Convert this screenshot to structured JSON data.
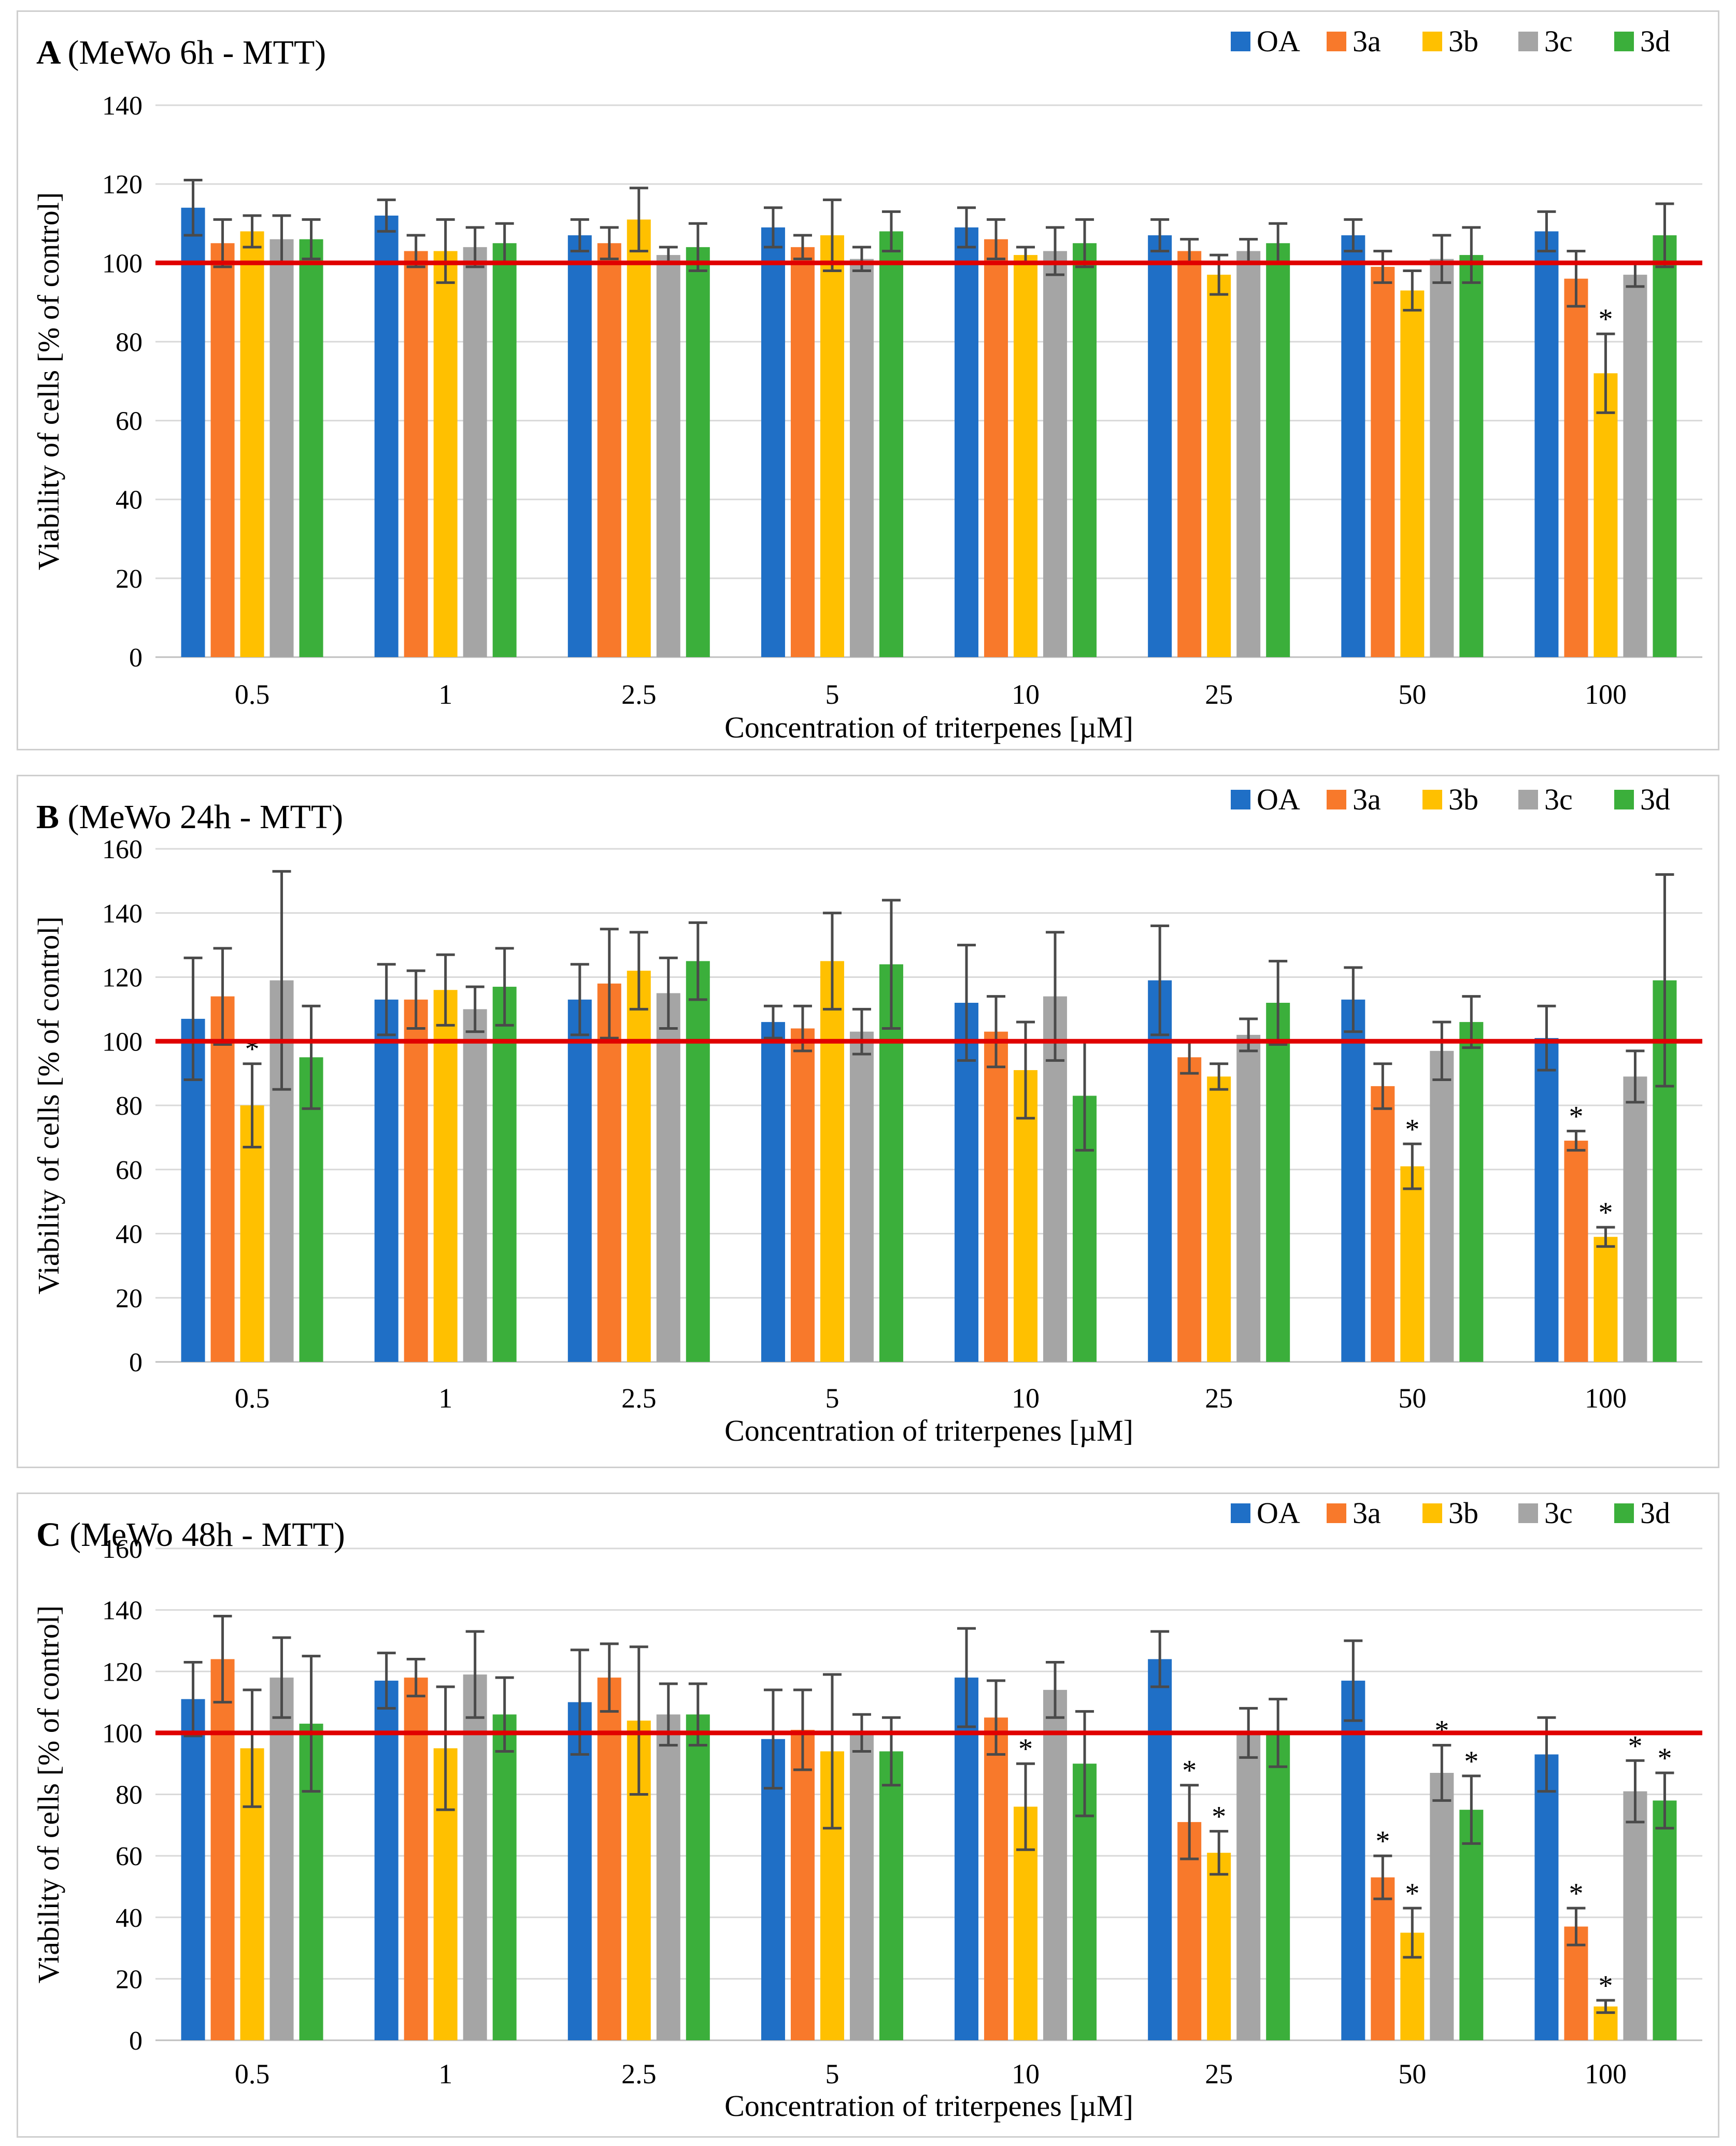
{
  "colors": {
    "OA": "#1F6FC6",
    "3a": "#F8792B",
    "3b": "#FFC000",
    "3c": "#A5A5A5",
    "3d": "#3BAF3B",
    "reference_line": "#E00000",
    "gridline": "#d9d9d9",
    "error_bar": "#4a4a4a"
  },
  "chart_data": [
    {
      "type": "bar",
      "panel_letter": "A",
      "title": "(MeWo 6h - MTT)",
      "xlabel": "Concentration of triterpenes [µM]",
      "ylabel": "Viability of cells [% of control]",
      "ylim": [
        0,
        140
      ],
      "yticks": [
        0,
        20,
        40,
        60,
        80,
        100,
        120,
        140
      ],
      "reference_value": 100,
      "legend_position": "top-right",
      "categories": [
        "0.5",
        "1",
        "2.5",
        "5",
        "10",
        "25",
        "50",
        "100"
      ],
      "series": [
        {
          "name": "OA",
          "values": [
            114,
            112,
            107,
            109,
            109,
            107,
            107,
            108
          ],
          "errors": [
            7,
            4,
            4,
            5,
            5,
            4,
            4,
            5
          ],
          "sig": [
            false,
            false,
            false,
            false,
            false,
            false,
            false,
            false
          ]
        },
        {
          "name": "3a",
          "values": [
            105,
            103,
            105,
            104,
            106,
            103,
            99,
            96
          ],
          "errors": [
            6,
            4,
            4,
            3,
            5,
            3,
            4,
            7
          ],
          "sig": [
            false,
            false,
            false,
            false,
            false,
            false,
            false,
            false
          ]
        },
        {
          "name": "3b",
          "values": [
            108,
            103,
            111,
            107,
            102,
            97,
            93,
            72
          ],
          "errors": [
            4,
            8,
            8,
            9,
            2,
            5,
            5,
            10
          ],
          "sig": [
            false,
            false,
            false,
            false,
            false,
            false,
            false,
            true
          ]
        },
        {
          "name": "3c",
          "values": [
            106,
            104,
            102,
            101,
            103,
            103,
            101,
            97
          ],
          "errors": [
            6,
            5,
            2,
            3,
            6,
            3,
            6,
            3
          ],
          "sig": [
            false,
            false,
            false,
            false,
            false,
            false,
            false,
            false
          ]
        },
        {
          "name": "3d",
          "values": [
            106,
            105,
            104,
            108,
            105,
            105,
            102,
            107
          ],
          "errors": [
            5,
            5,
            6,
            5,
            6,
            5,
            7,
            8
          ],
          "sig": [
            false,
            false,
            false,
            false,
            false,
            false,
            false,
            false
          ]
        }
      ]
    },
    {
      "type": "bar",
      "panel_letter": "B",
      "title": "(MeWo 24h - MTT)",
      "xlabel": "Concentration of triterpenes [µM]",
      "ylabel": "Viability of cells [% of control]",
      "ylim": [
        0,
        160
      ],
      "yticks": [
        0,
        20,
        40,
        60,
        80,
        100,
        120,
        140,
        160
      ],
      "reference_value": 100,
      "legend_position": "top-right",
      "categories": [
        "0.5",
        "1",
        "2.5",
        "5",
        "10",
        "25",
        "50",
        "100"
      ],
      "series": [
        {
          "name": "OA",
          "values": [
            107,
            113,
            113,
            106,
            112,
            119,
            113,
            101
          ],
          "errors": [
            19,
            11,
            11,
            5,
            18,
            17,
            10,
            10
          ],
          "sig": [
            false,
            false,
            false,
            false,
            false,
            false,
            false,
            false
          ]
        },
        {
          "name": "3a",
          "values": [
            114,
            113,
            118,
            104,
            103,
            95,
            86,
            69
          ],
          "errors": [
            15,
            9,
            17,
            7,
            11,
            5,
            7,
            3
          ],
          "sig": [
            false,
            false,
            false,
            false,
            false,
            false,
            false,
            true
          ]
        },
        {
          "name": "3b",
          "values": [
            80,
            116,
            122,
            125,
            91,
            89,
            61,
            39
          ],
          "errors": [
            13,
            11,
            12,
            15,
            15,
            4,
            7,
            3
          ],
          "sig": [
            true,
            false,
            false,
            false,
            false,
            false,
            true,
            true
          ]
        },
        {
          "name": "3c",
          "values": [
            119,
            110,
            115,
            103,
            114,
            102,
            97,
            89
          ],
          "errors": [
            34,
            7,
            11,
            7,
            20,
            5,
            9,
            8
          ],
          "sig": [
            false,
            false,
            false,
            false,
            false,
            false,
            false,
            false
          ]
        },
        {
          "name": "3d",
          "values": [
            95,
            117,
            125,
            124,
            83,
            112,
            106,
            119
          ],
          "errors": [
            16,
            12,
            12,
            20,
            17,
            13,
            8,
            33
          ],
          "sig": [
            false,
            false,
            false,
            false,
            false,
            false,
            false,
            false
          ]
        }
      ]
    },
    {
      "type": "bar",
      "panel_letter": "C",
      "title": "(MeWo 48h - MTT)",
      "xlabel": "Concentration of triterpenes [µM]",
      "ylabel": "Viability of cells [% of control]",
      "ylim": [
        0,
        160
      ],
      "yticks": [
        0,
        20,
        40,
        60,
        80,
        100,
        120,
        140,
        160
      ],
      "reference_value": 100,
      "legend_position": "top-right",
      "categories": [
        "0.5",
        "1",
        "2.5",
        "5",
        "10",
        "25",
        "50",
        "100"
      ],
      "series": [
        {
          "name": "OA",
          "values": [
            111,
            117,
            110,
            98,
            118,
            124,
            117,
            93
          ],
          "errors": [
            12,
            9,
            17,
            16,
            16,
            9,
            13,
            12
          ],
          "sig": [
            false,
            false,
            false,
            false,
            false,
            false,
            false,
            false
          ]
        },
        {
          "name": "3a",
          "values": [
            124,
            118,
            118,
            101,
            105,
            71,
            53,
            37
          ],
          "errors": [
            14,
            6,
            11,
            13,
            12,
            12,
            7,
            6
          ],
          "sig": [
            false,
            false,
            false,
            false,
            false,
            true,
            true,
            true
          ]
        },
        {
          "name": "3b",
          "values": [
            95,
            95,
            104,
            94,
            76,
            61,
            35,
            11
          ],
          "errors": [
            19,
            20,
            24,
            25,
            14,
            7,
            8,
            2
          ],
          "sig": [
            false,
            false,
            false,
            false,
            true,
            true,
            true,
            true
          ]
        },
        {
          "name": "3c",
          "values": [
            118,
            119,
            106,
            100,
            114,
            100,
            87,
            81
          ],
          "errors": [
            13,
            14,
            10,
            6,
            9,
            8,
            9,
            10
          ],
          "sig": [
            false,
            false,
            false,
            false,
            false,
            false,
            true,
            true
          ]
        },
        {
          "name": "3d",
          "values": [
            103,
            106,
            106,
            94,
            90,
            100,
            75,
            78
          ],
          "errors": [
            22,
            12,
            10,
            11,
            17,
            11,
            11,
            9
          ],
          "sig": [
            false,
            false,
            false,
            false,
            false,
            false,
            true,
            true
          ]
        }
      ]
    }
  ]
}
